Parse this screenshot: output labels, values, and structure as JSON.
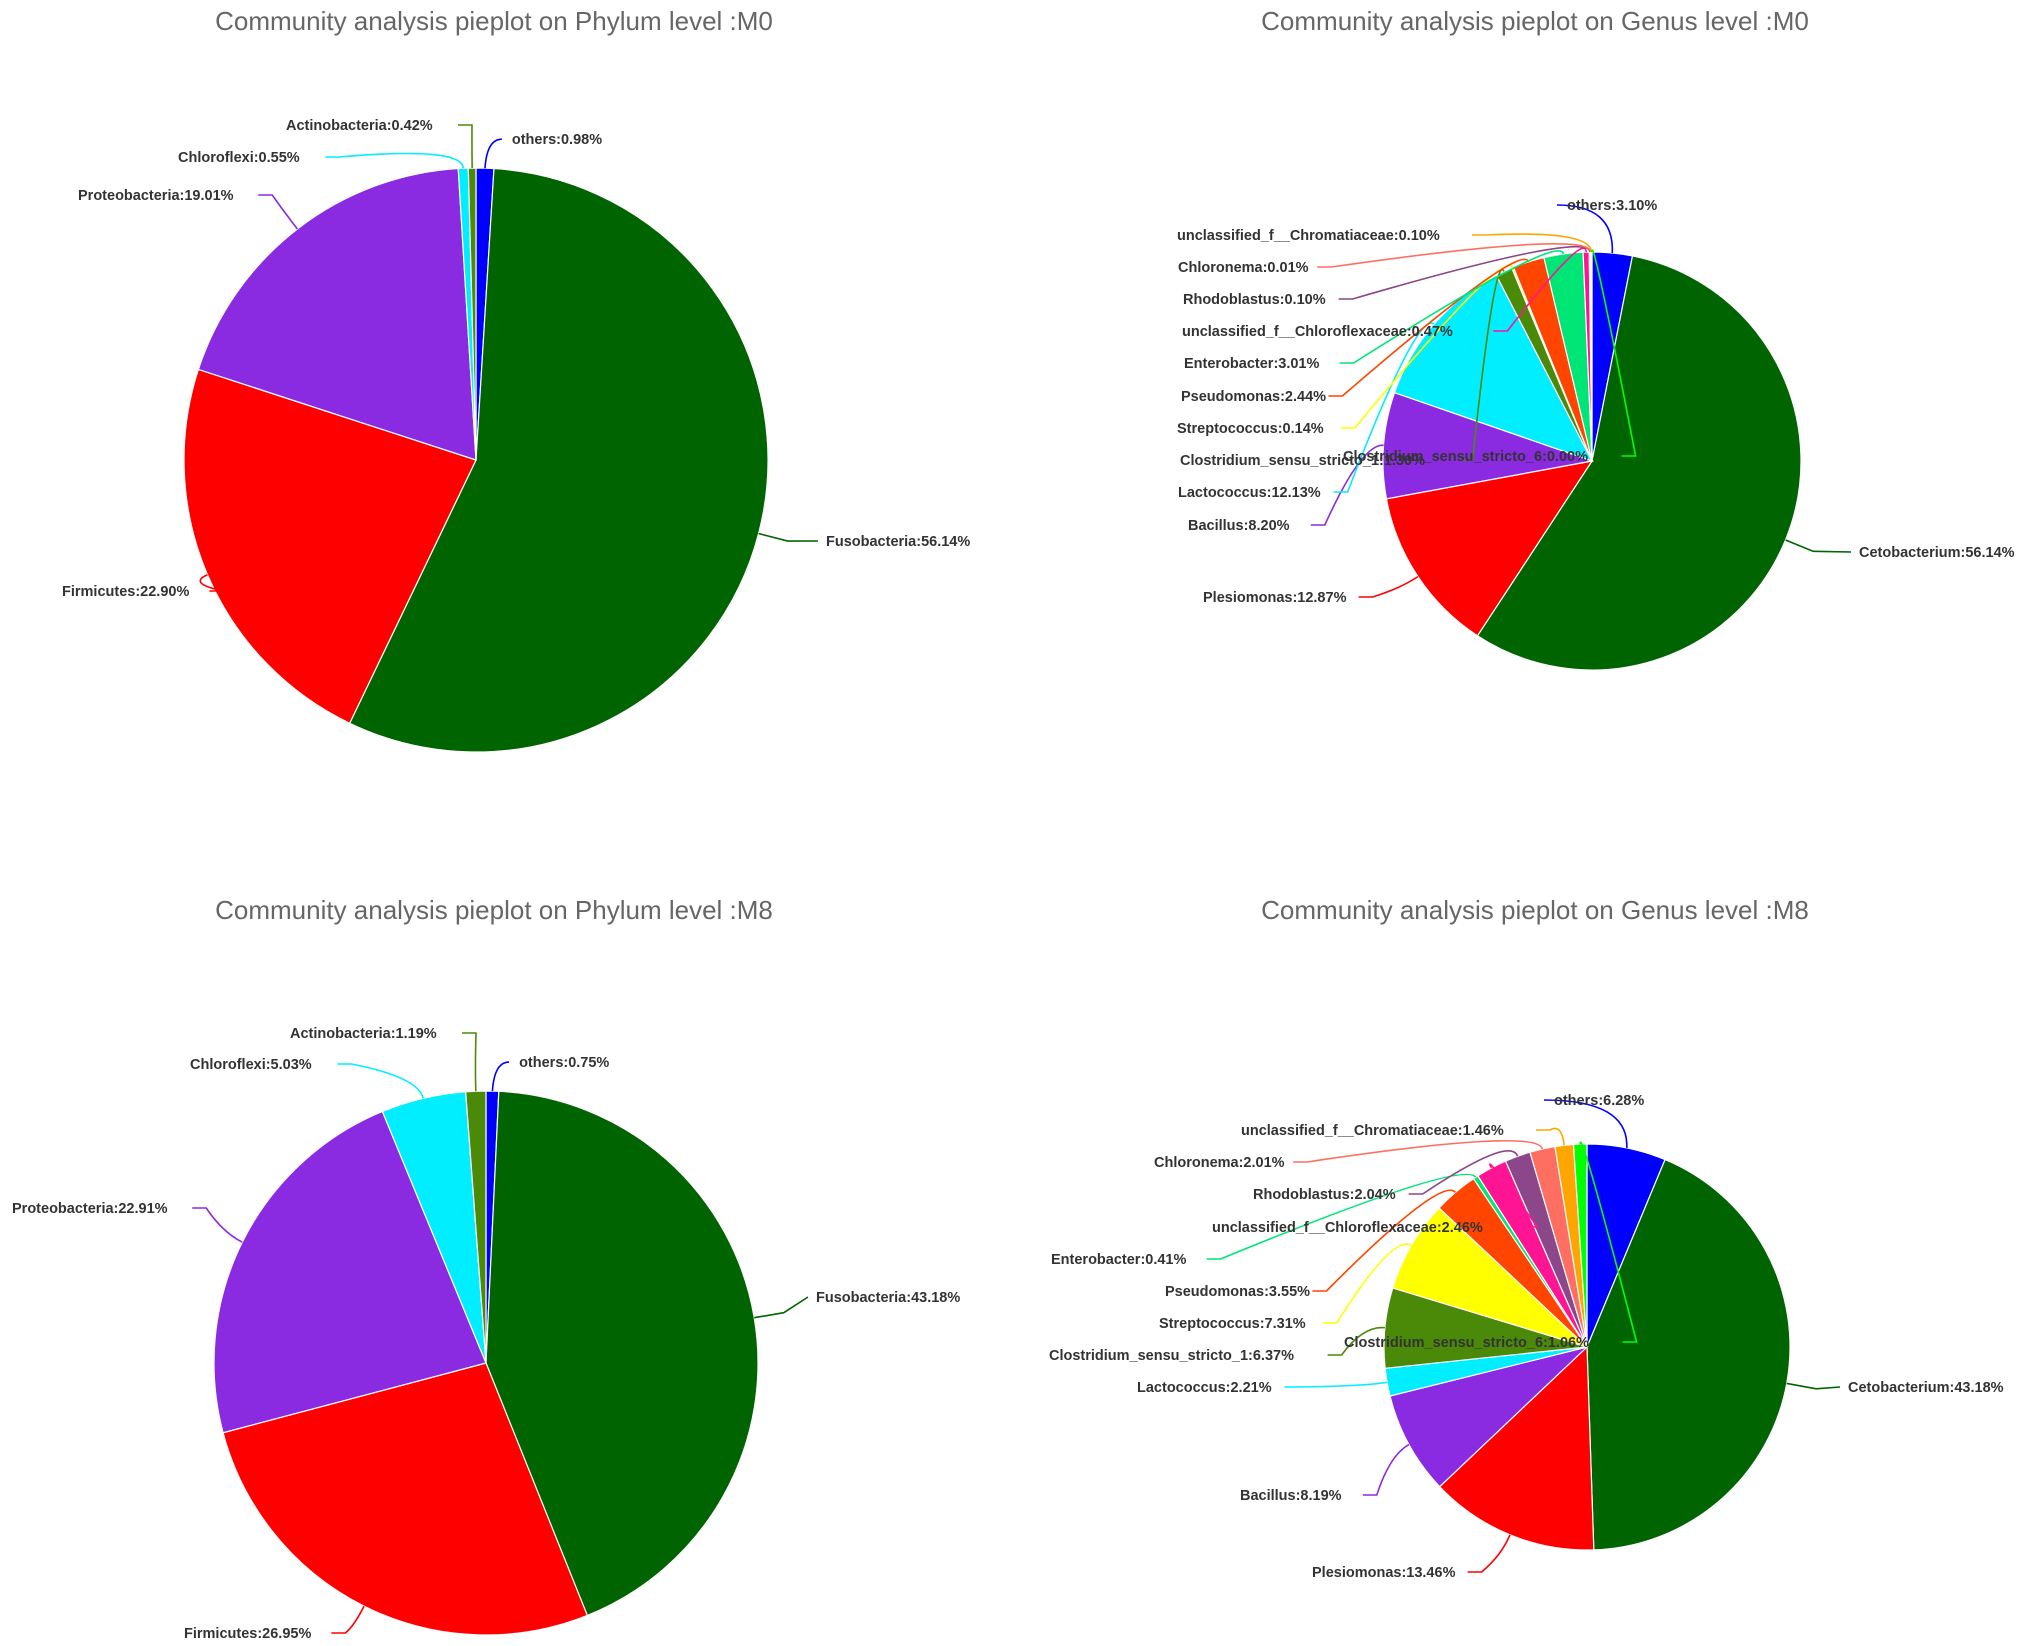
{
  "chart_data": [
    {
      "type": "pie",
      "title": "Community analysis pieplot on Phylum level :M0",
      "slices": [
        {
          "name": "others",
          "value": 0.98,
          "label": "others:0.98%",
          "color": "#0000ff"
        },
        {
          "name": "Fusobacteria",
          "value": 56.14,
          "label": "Fusobacteria:56.14%",
          "color": "#006400"
        },
        {
          "name": "Firmicutes",
          "value": 22.9,
          "label": "Firmicutes:22.90%",
          "color": "#ff0000"
        },
        {
          "name": "Proteobacteria",
          "value": 19.01,
          "label": "Proteobacteria:19.01%",
          "color": "#8a2be2"
        },
        {
          "name": "Chloroflexi",
          "value": 0.55,
          "label": "Chloroflexi:0.55%",
          "color": "#00eeff"
        },
        {
          "name": "Actinobacteria",
          "value": 0.42,
          "label": "Actinobacteria:0.42%",
          "color": "#4b8a08"
        }
      ]
    },
    {
      "type": "pie",
      "title": "Community analysis pieplot on Genus level :M0",
      "slices": [
        {
          "name": "others",
          "value": 3.1,
          "label": "others:3.10%",
          "color": "#0000ff"
        },
        {
          "name": "Cetobacterium",
          "value": 56.14,
          "label": "Cetobacterium:56.14%",
          "color": "#006400"
        },
        {
          "name": "Plesiomonas",
          "value": 12.87,
          "label": "Plesiomonas:12.87%",
          "color": "#ff0000"
        },
        {
          "name": "Bacillus",
          "value": 8.2,
          "label": "Bacillus:8.20%",
          "color": "#8a2be2"
        },
        {
          "name": "Lactococcus",
          "value": 12.13,
          "label": "Lactococcus:12.13%",
          "color": "#00eeff"
        },
        {
          "name": "Clostridium_sensu_stricto_1",
          "value": 1.3,
          "label": "Clostridium_sensu_stricto_1:1.30%",
          "color": "#4b8a08"
        },
        {
          "name": "Streptococcus",
          "value": 0.14,
          "label": "Streptococcus:0.14%",
          "color": "#ffff00"
        },
        {
          "name": "Pseudomonas",
          "value": 2.44,
          "label": "Pseudomonas:2.44%",
          "color": "#ff4500"
        },
        {
          "name": "Enterobacter",
          "value": 3.01,
          "label": "Enterobacter:3.01%",
          "color": "#00e676"
        },
        {
          "name": "unclassified_f__Chloroflexaceae",
          "value": 0.47,
          "label": "unclassified_f__Chloroflexaceae:0.47%",
          "color": "#ff1493"
        },
        {
          "name": "Rhodoblastus",
          "value": 0.1,
          "label": "Rhodoblastus:0.10%",
          "color": "#8b4789"
        },
        {
          "name": "Chloronema",
          "value": 0.01,
          "label": "Chloronema:0.01%",
          "color": "#ff6f61"
        },
        {
          "name": "unclassified_f__Chromatiaceae",
          "value": 0.1,
          "label": "unclassified_f__Chromatiaceae:0.10%",
          "color": "#ffa500"
        },
        {
          "name": "Clostridium_sensu_stricto_6",
          "value": 0.0,
          "label": "Clostridium_sensu_stricto_6:0.00%",
          "color": "#00ff00"
        }
      ]
    },
    {
      "type": "pie",
      "title": "Community analysis pieplot on Phylum level :M8",
      "slices": [
        {
          "name": "others",
          "value": 0.75,
          "label": "others:0.75%",
          "color": "#0000ff"
        },
        {
          "name": "Fusobacteria",
          "value": 43.18,
          "label": "Fusobacteria:43.18%",
          "color": "#006400"
        },
        {
          "name": "Firmicutes",
          "value": 26.95,
          "label": "Firmicutes:26.95%",
          "color": "#ff0000"
        },
        {
          "name": "Proteobacteria",
          "value": 22.91,
          "label": "Proteobacteria:22.91%",
          "color": "#8a2be2"
        },
        {
          "name": "Chloroflexi",
          "value": 5.03,
          "label": "Chloroflexi:5.03%",
          "color": "#00eeff"
        },
        {
          "name": "Actinobacteria",
          "value": 1.19,
          "label": "Actinobacteria:1.19%",
          "color": "#4b8a08"
        }
      ]
    },
    {
      "type": "pie",
      "title": "Community analysis pieplot on Genus level :M8",
      "slices": [
        {
          "name": "others",
          "value": 6.28,
          "label": "others:6.28%",
          "color": "#0000ff"
        },
        {
          "name": "Cetobacterium",
          "value": 43.18,
          "label": "Cetobacterium:43.18%",
          "color": "#006400"
        },
        {
          "name": "Plesiomonas",
          "value": 13.46,
          "label": "Plesiomonas:13.46%",
          "color": "#ff0000"
        },
        {
          "name": "Bacillus",
          "value": 8.19,
          "label": "Bacillus:8.19%",
          "color": "#8a2be2"
        },
        {
          "name": "Lactococcus",
          "value": 2.21,
          "label": "Lactococcus:2.21%",
          "color": "#00eeff"
        },
        {
          "name": "Clostridium_sensu_stricto_1",
          "value": 6.37,
          "label": "Clostridium_sensu_stricto_1:6.37%",
          "color": "#4b8a08"
        },
        {
          "name": "Streptococcus",
          "value": 7.31,
          "label": "Streptococcus:7.31%",
          "color": "#ffff00"
        },
        {
          "name": "Pseudomonas",
          "value": 3.55,
          "label": "Pseudomonas:3.55%",
          "color": "#ff4500"
        },
        {
          "name": "Enterobacter",
          "value": 0.41,
          "label": "Enterobacter:0.41%",
          "color": "#00e676"
        },
        {
          "name": "unclassified_f__Chloroflexaceae",
          "value": 2.46,
          "label": "unclassified_f__Chloroflexaceae:2.46%",
          "color": "#ff1493"
        },
        {
          "name": "Rhodoblastus",
          "value": 2.04,
          "label": "Rhodoblastus:2.04%",
          "color": "#8b4789"
        },
        {
          "name": "Chloronema",
          "value": 2.01,
          "label": "Chloronema:2.01%",
          "color": "#ff6f61"
        },
        {
          "name": "unclassified_f__Chromatiaceae",
          "value": 1.46,
          "label": "unclassified_f__Chromatiaceae:1.46%",
          "color": "#ffa500"
        },
        {
          "name": "Clostridium_sensu_stricto_6",
          "value": 1.06,
          "label": "Clostridium_sensu_stricto_6:1.06%",
          "color": "#00ff00"
        }
      ]
    }
  ]
}
